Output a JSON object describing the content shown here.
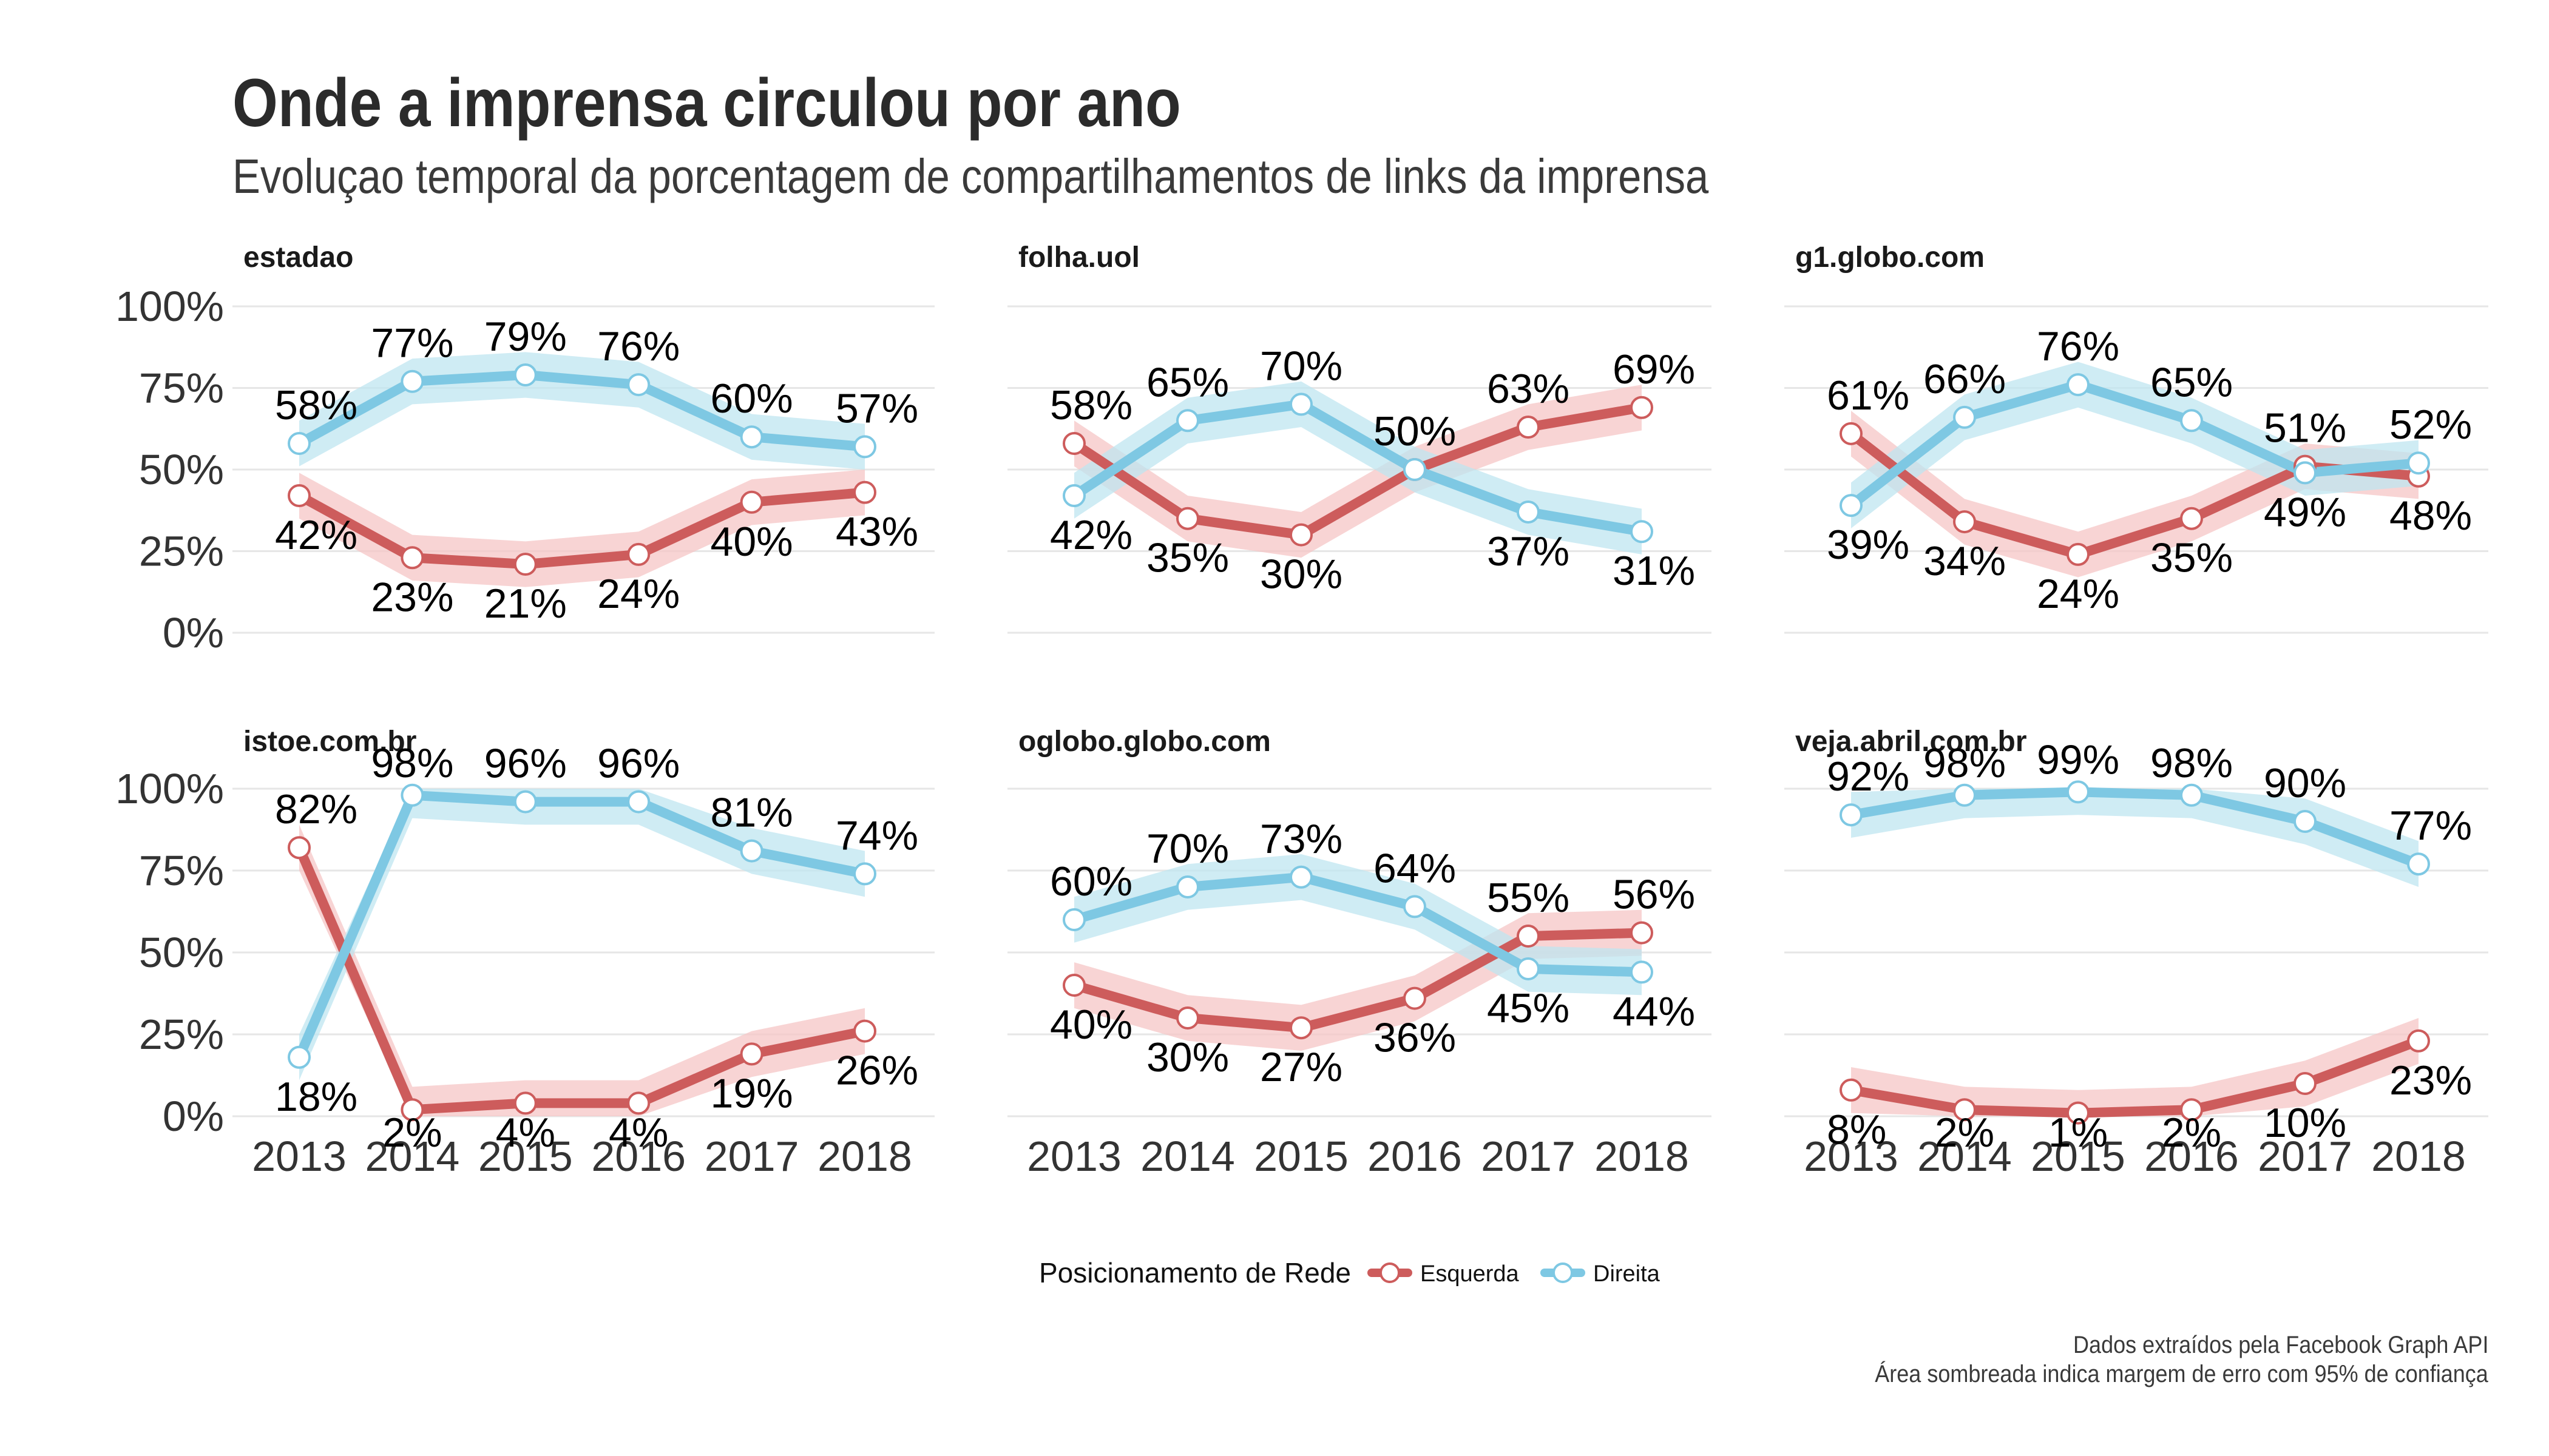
{
  "title": "Onde a imprensa circulou por ano",
  "subtitle": "Evoluçao temporal da porcentagem de compartilhamentos de links da imprensa",
  "caption": [
    "Dados extraídos pela Facebook Graph API",
    "Área sombreada indica margem de erro com 95% de confiança"
  ],
  "legend": {
    "title": "Posicionamento de Rede",
    "items": [
      {
        "label": "Esquerda",
        "color": "#cd5c5c"
      },
      {
        "label": "Direita",
        "color": "#7ec8e3"
      }
    ]
  },
  "chart_data": {
    "type": "line",
    "x": [
      2013,
      2014,
      2015,
      2016,
      2017,
      2018
    ],
    "x_tick_labels": [
      "2013",
      "2014",
      "2015",
      "2016",
      "2017",
      "2018"
    ],
    "y_tick_labels": [
      "0%",
      "25%",
      "50%",
      "75%",
      "100%"
    ],
    "y_ticks": [
      0,
      25,
      50,
      75,
      100
    ],
    "ylim": [
      0,
      100
    ],
    "grid": true,
    "legend_position": "bottom",
    "series_colors": {
      "Esquerda": "#cd5c5c",
      "Direita": "#7ec8e3"
    },
    "band_colors": {
      "Esquerda": "#f6c6c6",
      "Direita": "#bfe6f0"
    },
    "panels": [
      {
        "name": "estadao",
        "series": [
          {
            "name": "Esquerda",
            "values": [
              42,
              23,
              21,
              24,
              40,
              43
            ],
            "labels": [
              "42%",
              "23%",
              "21%",
              "24%",
              "40%",
              "43%"
            ]
          },
          {
            "name": "Direita",
            "values": [
              58,
              77,
              79,
              76,
              60,
              57
            ],
            "labels": [
              "58%",
              "77%",
              "79%",
              "76%",
              "60%",
              "57%"
            ]
          }
        ]
      },
      {
        "name": "folha.uol",
        "series": [
          {
            "name": "Esquerda",
            "values": [
              58,
              35,
              30,
              50,
              63,
              69
            ],
            "labels": [
              "58%",
              "35%",
              "30%",
              "50%",
              "63%",
              "69%"
            ]
          },
          {
            "name": "Direita",
            "values": [
              42,
              65,
              70,
              50,
              37,
              31
            ],
            "labels": [
              "42%",
              "65%",
              "70%",
              "50%",
              "37%",
              "31%"
            ]
          }
        ]
      },
      {
        "name": "g1.globo.com",
        "series": [
          {
            "name": "Esquerda",
            "values": [
              61,
              34,
              24,
              35,
              51,
              48
            ],
            "labels": [
              "61%",
              "34%",
              "24%",
              "35%",
              "51%",
              "48%"
            ]
          },
          {
            "name": "Direita",
            "values": [
              39,
              66,
              76,
              65,
              49,
              52
            ],
            "labels": [
              "39%",
              "66%",
              "76%",
              "65%",
              "49%",
              "52%"
            ]
          }
        ]
      },
      {
        "name": "istoe.com.br",
        "series": [
          {
            "name": "Esquerda",
            "values": [
              82,
              2,
              4,
              4,
              19,
              26
            ],
            "labels": [
              "82%",
              "2%",
              "4%",
              "4%",
              "19%",
              "26%"
            ]
          },
          {
            "name": "Direita",
            "values": [
              18,
              98,
              96,
              96,
              81,
              74
            ],
            "labels": [
              "18%",
              "98%",
              "96%",
              "96%",
              "81%",
              "74%"
            ]
          }
        ]
      },
      {
        "name": "oglobo.globo.com",
        "series": [
          {
            "name": "Esquerda",
            "values": [
              40,
              30,
              27,
              36,
              55,
              56
            ],
            "labels": [
              "40%",
              "30%",
              "27%",
              "36%",
              "55%",
              "56%"
            ]
          },
          {
            "name": "Direita",
            "values": [
              60,
              70,
              73,
              64,
              45,
              44
            ],
            "labels": [
              "60%",
              "70%",
              "73%",
              "64%",
              "45%",
              "44%"
            ]
          }
        ]
      },
      {
        "name": "veja.abril.com.br",
        "series": [
          {
            "name": "Esquerda",
            "values": [
              8,
              2,
              1,
              2,
              10,
              23
            ],
            "labels": [
              "8%",
              "2%",
              "1%",
              "2%",
              "10%",
              "23%"
            ]
          },
          {
            "name": "Direita",
            "values": [
              92,
              98,
              99,
              98,
              90,
              77
            ],
            "labels": [
              "92%",
              "98%",
              "99%",
              "98%",
              "90%",
              "77%"
            ]
          }
        ]
      }
    ]
  }
}
